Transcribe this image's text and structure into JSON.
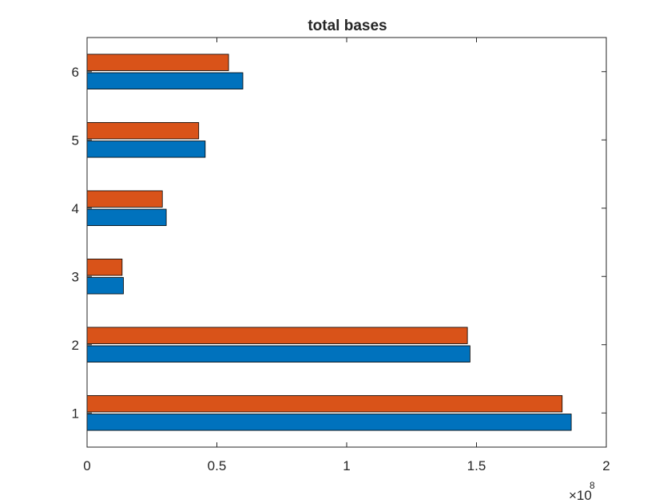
{
  "chart_data": {
    "type": "bar",
    "orientation": "horizontal",
    "title": "total bases",
    "xlabel": "",
    "ylabel": "",
    "categories": [
      "1",
      "2",
      "3",
      "4",
      "5",
      "6"
    ],
    "series": [
      {
        "values": [
          186500000.0,
          147500000.0,
          14000000.0,
          30500000.0,
          45500000.0,
          60000000.0
        ],
        "color": "#0072BD"
      },
      {
        "values": [
          183000000.0,
          146500000.0,
          13500000.0,
          29000000.0,
          43000000.0,
          54500000.0
        ],
        "color": "#D95319"
      }
    ],
    "xlim": [
      0,
      200000000
    ],
    "x_ticks": [
      0,
      0.5,
      1,
      1.5,
      2
    ],
    "x_tick_labels": [
      "0",
      "0.5",
      "1",
      "1.5",
      "2"
    ],
    "x_exponent": {
      "base": "×10",
      "power": "8"
    },
    "grid": false,
    "legend": "none"
  }
}
